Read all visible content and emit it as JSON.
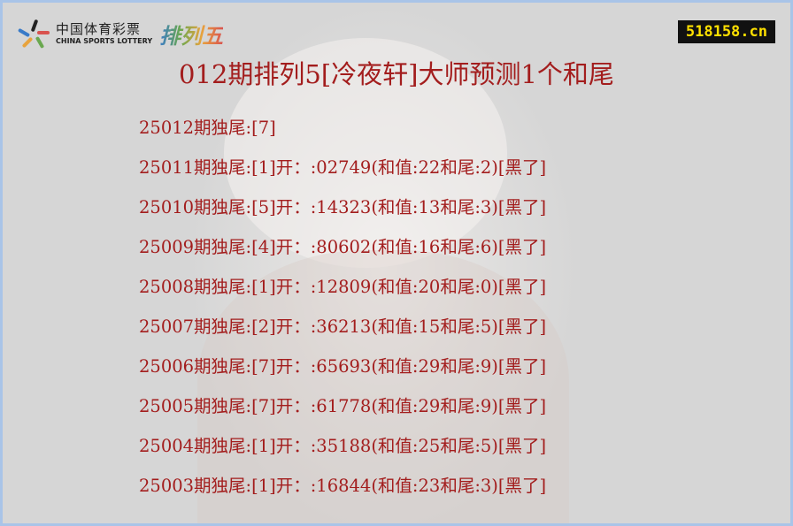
{
  "logo": {
    "cn": "中国体育彩票",
    "en": "CHINA SPORTS LOTTERY",
    "game": "排列五"
  },
  "site": "518158.cn",
  "title": "012期排列5[冷夜轩]大师预测1个和尾",
  "rows": [
    "25012期独尾:[7]",
    "25011期独尾:[1]开：:02749(和值:22和尾:2)[黑了]",
    "25010期独尾:[5]开：:14323(和值:13和尾:3)[黑了]",
    "25009期独尾:[4]开：:80602(和值:16和尾:6)[黑了]",
    "25008期独尾:[1]开：:12809(和值:20和尾:0)[黑了]",
    "25007期独尾:[2]开：:36213(和值:15和尾:5)[黑了]",
    "25006期独尾:[7]开：:65693(和值:29和尾:9)[黑了]",
    "25005期独尾:[7]开：:61778(和值:29和尾:9)[黑了]",
    "25004期独尾:[1]开：:35188(和值:25和尾:5)[黑了]",
    "25003期独尾:[1]开：:16844(和值:23和尾:3)[黑了]"
  ],
  "colors": {
    "text": "#a31d1d",
    "border": "#a9c4e8",
    "badge_bg": "#111111",
    "badge_text": "#ffe000"
  }
}
